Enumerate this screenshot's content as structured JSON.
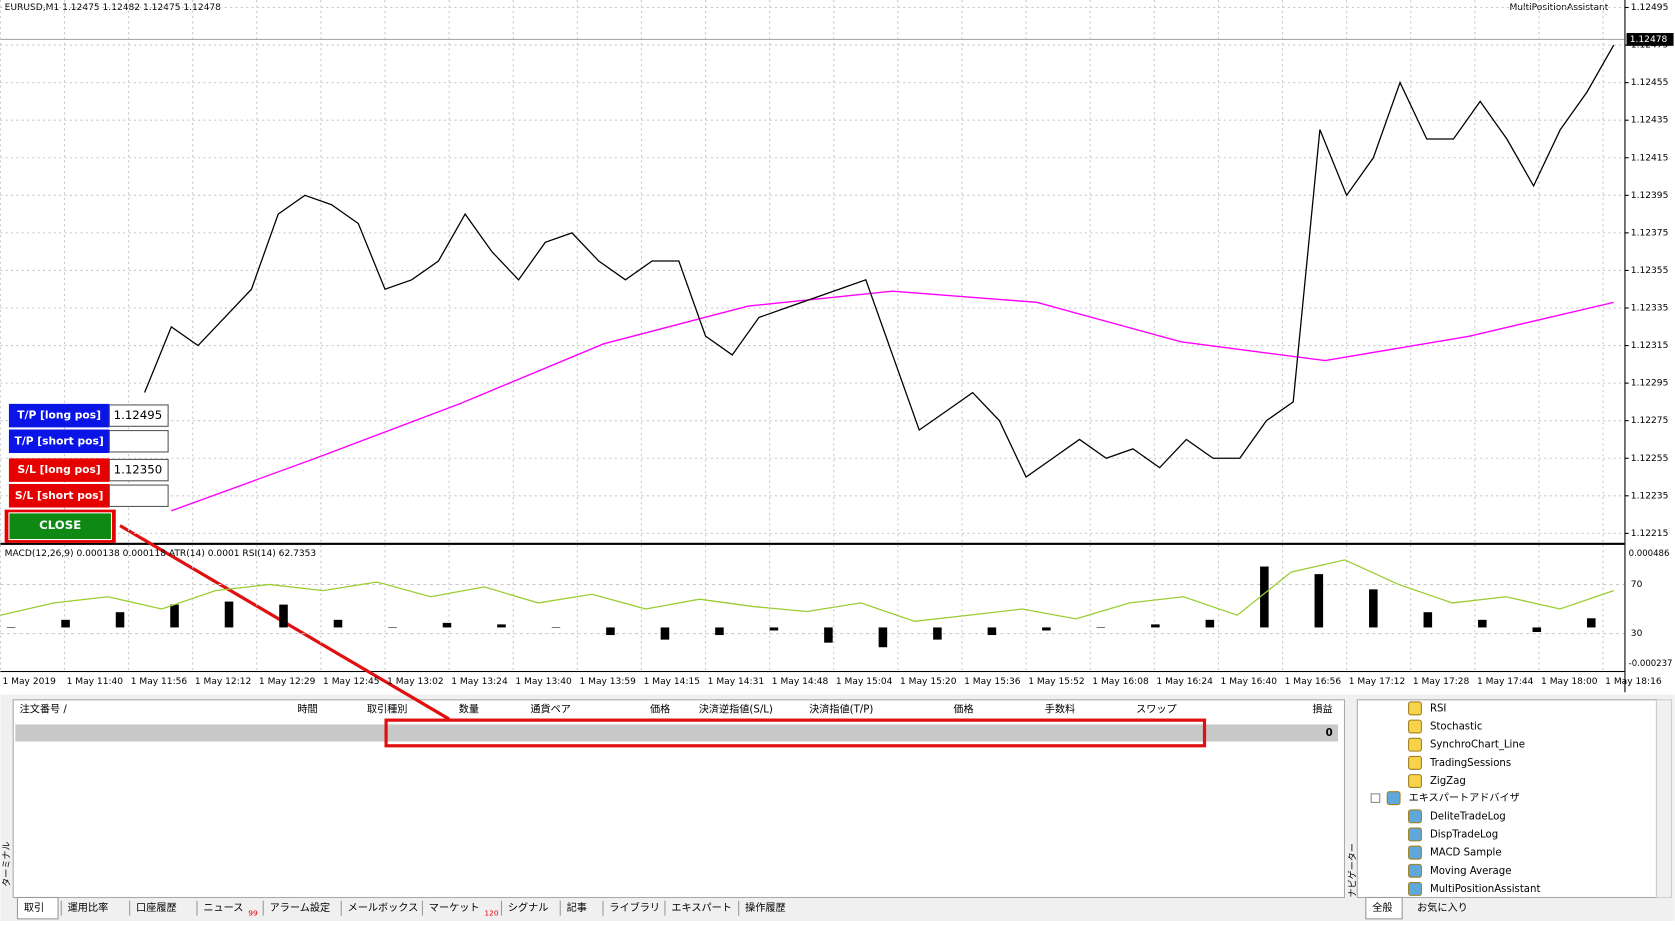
{
  "header": {
    "symbol_line": "EURUSD,M1  1.12475 1.12482 1.12475 1.12478",
    "expert": "MultiPositionAssistant"
  },
  "price_chart": {
    "ylim": [
      1.1221,
      1.12499
    ],
    "yticks": [
      1.12495,
      1.12475,
      1.12455,
      1.12435,
      1.12415,
      1.12395,
      1.12375,
      1.12355,
      1.12335,
      1.12315,
      1.12295,
      1.12275,
      1.12255,
      1.12235,
      1.12215
    ],
    "current_price": 1.12478,
    "close_series": {
      "color": "#000000",
      "values": [
        1.1229,
        1.12325,
        1.12315,
        1.1233,
        1.12345,
        1.12385,
        1.12395,
        1.1239,
        1.1238,
        1.12345,
        1.1235,
        1.1236,
        1.12385,
        1.12365,
        1.1235,
        1.1237,
        1.12375,
        1.1236,
        1.1235,
        1.1236,
        1.1236,
        1.1232,
        1.1231,
        1.1233,
        1.12335,
        1.1234,
        1.12345,
        1.1235,
        1.1231,
        1.1227,
        1.1228,
        1.1229,
        1.12275,
        1.12245,
        1.12255,
        1.12265,
        1.12255,
        1.1226,
        1.1225,
        1.12265,
        1.12255,
        1.12255,
        1.12275,
        1.12285,
        1.1243,
        1.12395,
        1.12415,
        1.12455,
        1.12425,
        1.12425,
        1.12445,
        1.12425,
        1.124,
        1.1243,
        1.1245,
        1.12475
      ]
    },
    "ma_series": {
      "color": "#ff00ff",
      "values": [
        1.12227,
        1.12255,
        1.12284,
        1.12316,
        1.12336,
        1.12344,
        1.12338,
        1.12317,
        1.12307,
        1.1232,
        1.12338
      ]
    }
  },
  "indicator": {
    "label": "MACD(12,26,9) 0.000138 0.000118  ATR(14) 0.0001  RSI(14) 62.7353",
    "macd_lim": [
      -0.000286,
      0.000542
    ],
    "macd_ticks": [
      0.000486,
      -0.000237
    ],
    "rsi_lim": [
      -0.4,
      102.2
    ],
    "rsi_ticks": [
      70,
      30
    ],
    "macd_color": "#000000",
    "rsi_color": "#9acd32",
    "macd_hist": [
      0,
      5e-05,
      0.0001,
      0.00015,
      0.00017,
      0.00015,
      5e-05,
      0,
      3e-05,
      2e-05,
      0,
      -5e-05,
      -8e-05,
      -5e-05,
      -2e-05,
      -0.0001,
      -0.00013,
      -8e-05,
      -5e-05,
      -2e-05,
      0,
      2e-05,
      5e-05,
      0.0004,
      0.00035,
      0.00025,
      0.0001,
      5e-05,
      -3e-05,
      6e-05
    ],
    "rsi": [
      45,
      55,
      60,
      50,
      65,
      70,
      65,
      72,
      60,
      68,
      55,
      62,
      50,
      58,
      52,
      48,
      55,
      40,
      45,
      50,
      42,
      55,
      60,
      45,
      80,
      90,
      70,
      55,
      60,
      50,
      65
    ]
  },
  "time_axis": [
    "1 May 2019",
    "1 May 11:40",
    "1 May 11:56",
    "1 May 12:12",
    "1 May 12:29",
    "1 May 12:45",
    "1 May 13:02",
    "1 May 13:24",
    "1 May 13:40",
    "1 May 13:59",
    "1 May 14:15",
    "1 May 14:31",
    "1 May 14:48",
    "1 May 15:04",
    "1 May 15:20",
    "1 May 15:36",
    "1 May 15:52",
    "1 May 16:08",
    "1 May 16:24",
    "1 May 16:40",
    "1 May 16:56",
    "1 May 17:12",
    "1 May 17:28",
    "1 May 17:44",
    "1 May 18:00",
    "1 May 18:16"
  ],
  "panel": [
    {
      "label": "T/P [long pos]",
      "value": "1.12495",
      "color": "#0a14e6"
    },
    {
      "label": "T/P [short pos]",
      "color": "#0a14e6"
    },
    {
      "label": "S/L [long pos]",
      "value": "1.12350",
      "color": "#e60000"
    },
    {
      "label": "S/L [short pos]",
      "color": "#e60000"
    }
  ],
  "close_button": "CLOSE",
  "terminal": {
    "side_label": "ターミナル",
    "columns": [
      "注文番号  /",
      "時間",
      "取引種別",
      "数量",
      "通貨ペア",
      "価格",
      "決済逆指値(S/L)",
      "決済指値(T/P)",
      "価格",
      "手数料",
      "スワップ",
      "損益"
    ],
    "row_total": "0",
    "tabs": [
      {
        "label": "取引"
      },
      {
        "label": "運用比率"
      },
      {
        "label": "口座履歴"
      },
      {
        "label": "ニュース",
        "badge": "99"
      },
      {
        "label": "アラーム設定"
      },
      {
        "label": "メールボックス"
      },
      {
        "label": "マーケット",
        "badge": "120"
      },
      {
        "label": "シグナル"
      },
      {
        "label": "記事"
      },
      {
        "label": "ライブラリ"
      },
      {
        "label": "エキスパート"
      },
      {
        "label": "操作履歴"
      }
    ]
  },
  "navigator": {
    "side_label": "ナビゲーター",
    "indicators": [
      "RSI",
      "Stochastic",
      "SynchroChart_Line",
      "TradingSessions",
      "ZigZag"
    ],
    "expert_group": "エキスパートアドバイザ",
    "experts": [
      "DeliteTradeLog",
      "DispTradeLog",
      "MACD Sample",
      "Moving Average",
      "MultiPositionAssistant"
    ],
    "tabs": [
      "全般",
      "お気に入り"
    ]
  }
}
